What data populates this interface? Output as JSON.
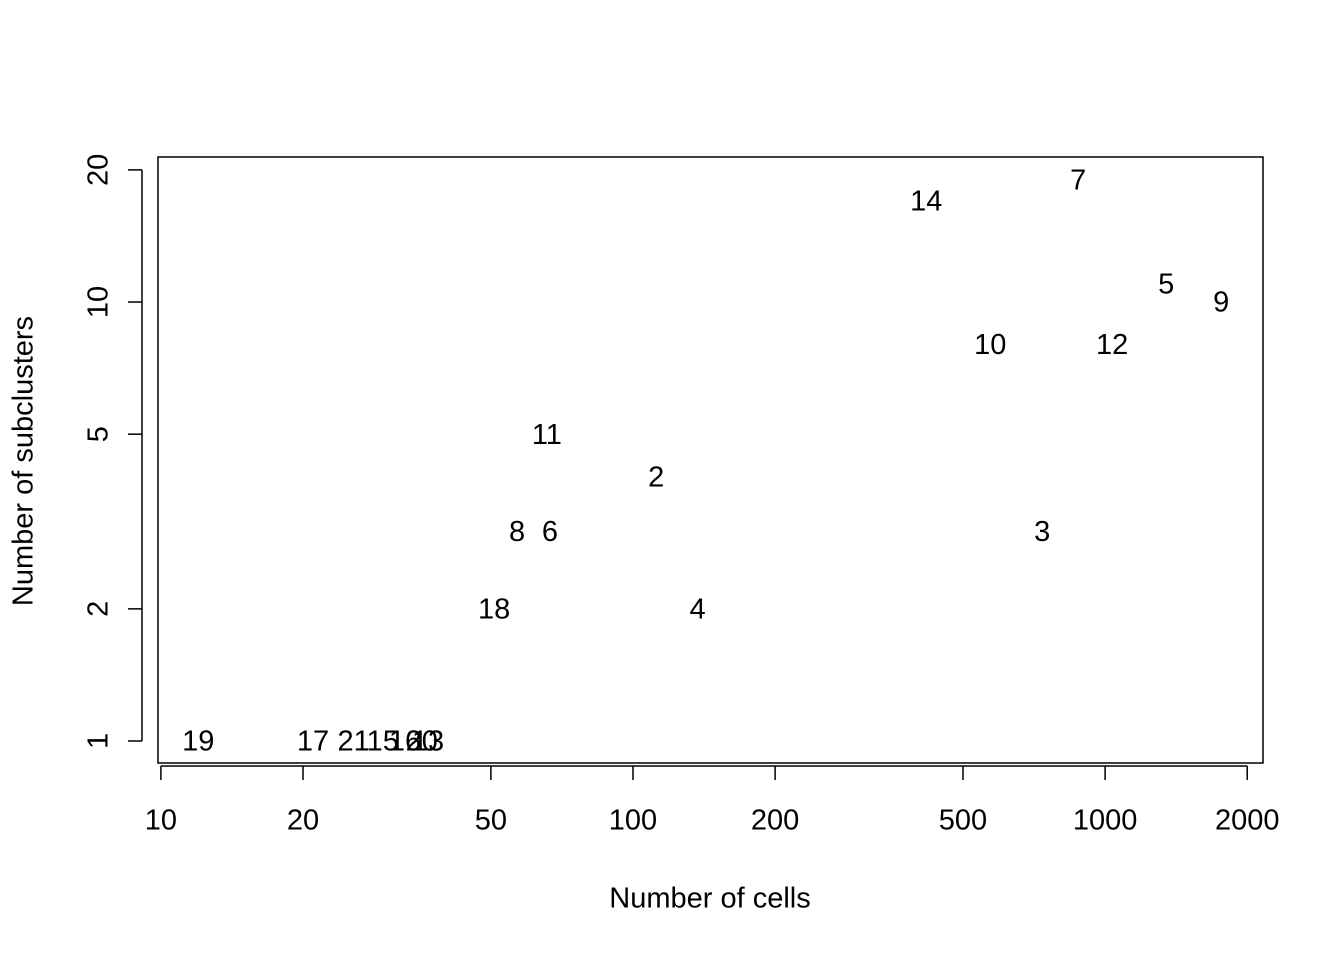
{
  "chart_data": {
    "type": "scatter",
    "x_label": "Number of cells",
    "y_label": "Number of subclusters",
    "xscale": "log",
    "yscale": "log",
    "xlim": [
      9.86,
      2160
    ],
    "ylim": [
      0.891,
      21.4
    ],
    "xticks": [
      10,
      20,
      50,
      100,
      200,
      500,
      1000,
      2000
    ],
    "yticks": [
      1,
      2,
      5,
      10,
      20
    ],
    "color": "#000000",
    "series": [
      {
        "labels": [
          "19",
          "17",
          "21",
          "15",
          "16",
          "20",
          "13",
          "18",
          "8",
          "6",
          "11",
          "2",
          "4",
          "14",
          "7",
          "10",
          "12",
          "3",
          "5",
          "9"
        ],
        "x": [
          12,
          21,
          25.6,
          29.5,
          32.9,
          35.7,
          36.8,
          50.8,
          56.8,
          66.7,
          65.7,
          112,
          137,
          418,
          877,
          571,
          1035,
          736,
          1347,
          1762
        ],
        "values": [
          1,
          1,
          1,
          1,
          1,
          1,
          1,
          2,
          3,
          3,
          5,
          4,
          2,
          17,
          19,
          8,
          8,
          3,
          11,
          10
        ]
      }
    ]
  }
}
